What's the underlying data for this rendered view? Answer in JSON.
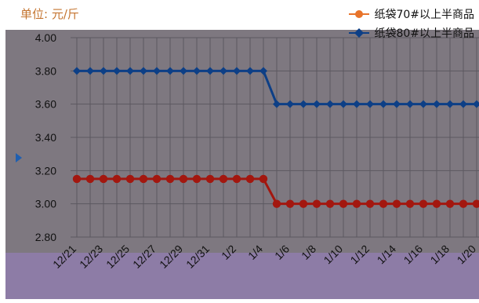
{
  "unit_label": "单位: 元/斤",
  "colors": {
    "plot_bg": "#7e7880",
    "bottom_band": "#8d7ca6",
    "grid": "#5c5860",
    "series_80": "#0d3f86",
    "series_70": "#a3170f",
    "legend_70": "#e8742b",
    "legend_80": "#0d3f86",
    "axis_text": "#111111"
  },
  "chart_data": {
    "type": "line",
    "title": "",
    "xlabel": "",
    "ylabel": "",
    "ylim": [
      2.8,
      4.0
    ],
    "yticks": [
      "2.80",
      "3.00",
      "3.20",
      "3.40",
      "3.60",
      "3.80",
      "4.00"
    ],
    "categories": [
      "12/21",
      "12/22",
      "12/23",
      "12/24",
      "12/25",
      "12/26",
      "12/27",
      "12/28",
      "12/29",
      "12/30",
      "12/31",
      "1/1",
      "1/2",
      "1/3",
      "1/4",
      "1/5",
      "1/6",
      "1/7",
      "1/8",
      "1/9",
      "1/10",
      "1/11",
      "1/12",
      "1/13",
      "1/14",
      "1/15",
      "1/16",
      "1/17",
      "1/18",
      "1/19",
      "1/20"
    ],
    "xtick_labels": [
      "12/21",
      "12/23",
      "12/25",
      "12/27",
      "12/29",
      "12/31",
      "1/2",
      "1/4",
      "1/6",
      "1/8",
      "1/10",
      "1/12",
      "1/14",
      "1/16",
      "1/18",
      "1/20"
    ],
    "series": [
      {
        "name": "纸袋80#以上半商品",
        "values": [
          3.8,
          3.8,
          3.8,
          3.8,
          3.8,
          3.8,
          3.8,
          3.8,
          3.8,
          3.8,
          3.8,
          3.8,
          3.8,
          3.8,
          3.8,
          3.6,
          3.6,
          3.6,
          3.6,
          3.6,
          3.6,
          3.6,
          3.6,
          3.6,
          3.6,
          3.6,
          3.6,
          3.6,
          3.6,
          3.6,
          3.6
        ]
      },
      {
        "name": "纸袋70#以上半商品",
        "values": [
          3.15,
          3.15,
          3.15,
          3.15,
          3.15,
          3.15,
          3.15,
          3.15,
          3.15,
          3.15,
          3.15,
          3.15,
          3.15,
          3.15,
          3.15,
          3.0,
          3.0,
          3.0,
          3.0,
          3.0,
          3.0,
          3.0,
          3.0,
          3.0,
          3.0,
          3.0,
          3.0,
          3.0,
          3.0,
          3.0,
          3.0
        ]
      }
    ],
    "legend": [
      {
        "label": "纸袋70#以上半商品"
      },
      {
        "label": "纸袋80#以上半商品"
      }
    ],
    "legend_position": "top-right",
    "grid": true
  }
}
